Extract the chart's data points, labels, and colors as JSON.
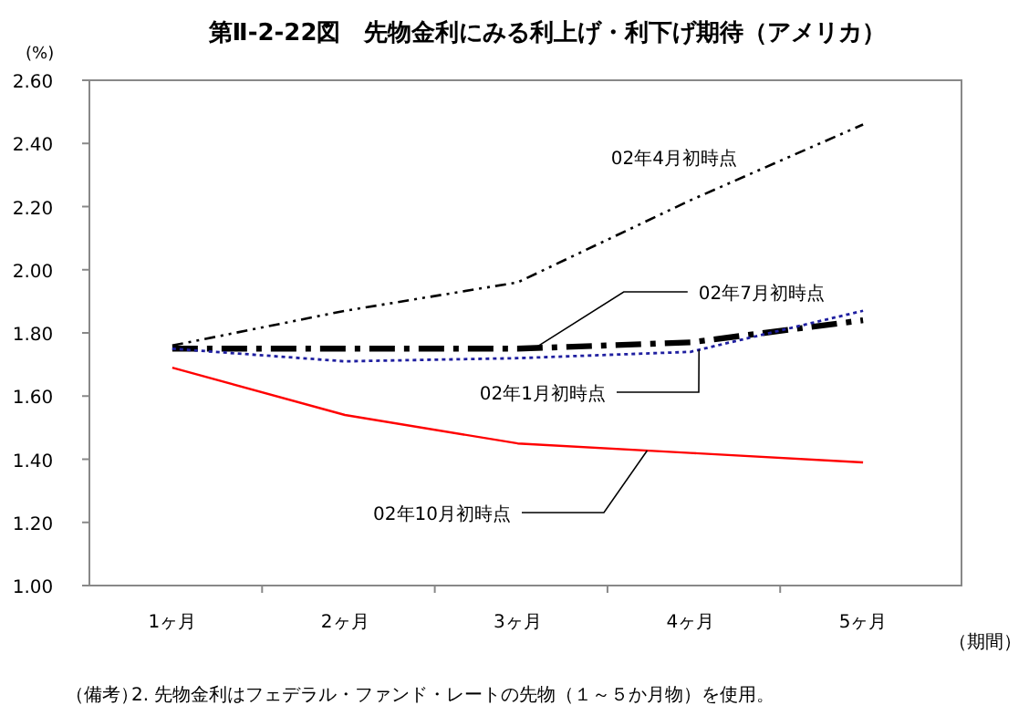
{
  "chart_data": {
    "type": "line",
    "title": "第Ⅱ-2-22図　先物金利にみる利上げ・利下げ期待（アメリカ）",
    "ylabel": "(%)",
    "xlabel": "（期間）",
    "categories": [
      "1ヶ月",
      "2ヶ月",
      "3ヶ月",
      "4ヶ月",
      "5ヶ月"
    ],
    "ylim": [
      1.0,
      2.6
    ],
    "yticks": [
      {
        "value": 1.0,
        "label": "1.00"
      },
      {
        "value": 1.2,
        "label": "1.20"
      },
      {
        "value": 1.4,
        "label": "1.40"
      },
      {
        "value": 1.6,
        "label": "1.60"
      },
      {
        "value": 1.8,
        "label": "1.80"
      },
      {
        "value": 2.0,
        "label": "2.00"
      },
      {
        "value": 2.2,
        "label": "2.20"
      },
      {
        "value": 2.4,
        "label": "2.40"
      },
      {
        "value": 2.6,
        "label": "2.60"
      }
    ],
    "grid": false,
    "marker": "none",
    "series": [
      {
        "name": "02年4月初時点",
        "color": "#000000",
        "line_style": "dashdot",
        "values": [
          1.76,
          1.87,
          1.96,
          2.22,
          2.46
        ]
      },
      {
        "name": "02年7月初時点",
        "color": "#000000",
        "line_style": "dashed",
        "values": [
          1.75,
          1.75,
          1.75,
          1.77,
          1.84
        ]
      },
      {
        "name": "02年1月初時点",
        "color": "#1f1fa0",
        "line_style": "dotted",
        "values": [
          1.75,
          1.71,
          1.72,
          1.74,
          1.87
        ]
      },
      {
        "name": "02年10月初時点",
        "color": "#ff0000",
        "line_style": "solid",
        "values": [
          1.69,
          1.54,
          1.45,
          1.42,
          1.39
        ]
      }
    ],
    "annotations": [
      "（備考）",
      "2. 先物金利はフェデラル・ファンド・レートの先物（１～５か月物）を使用。"
    ]
  }
}
